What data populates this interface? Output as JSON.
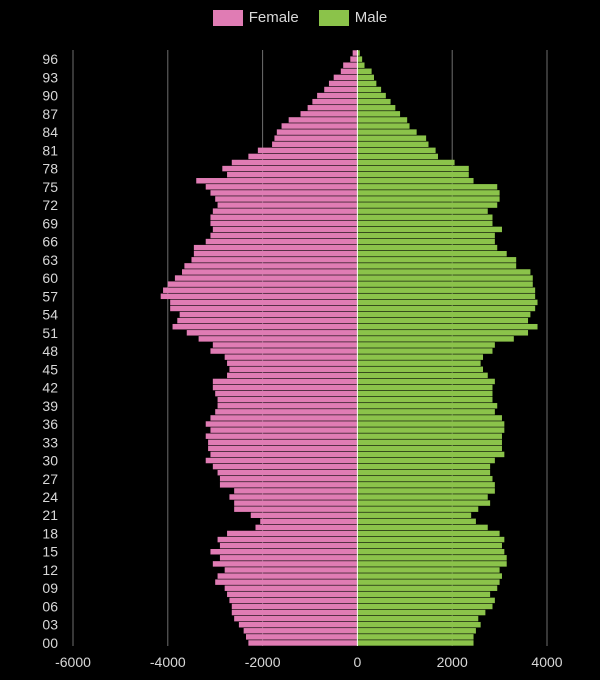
{
  "chart_data": {
    "type": "bar",
    "orientation": "horizontal",
    "layout": "population-pyramid",
    "legend_position": "top-center",
    "grid": "vertical",
    "xlim": [
      -6000,
      4000
    ],
    "x_ticks": [
      -6000,
      -4000,
      -2000,
      0,
      2000,
      4000
    ],
    "x_tick_labels": [
      "-6000",
      "-4000",
      "-2000",
      "0",
      "2000",
      "4000"
    ],
    "categories": [
      "0",
      "1",
      "2",
      "3",
      "4",
      "5",
      "6",
      "7",
      "8",
      "9",
      "10",
      "11",
      "12",
      "13",
      "14",
      "15",
      "16",
      "17",
      "18",
      "19",
      "20",
      "21",
      "22",
      "23",
      "24",
      "25",
      "26",
      "27",
      "28",
      "29",
      "30",
      "31",
      "32",
      "33",
      "34",
      "35",
      "36",
      "37",
      "38",
      "39",
      "40",
      "41",
      "42",
      "43",
      "44",
      "45",
      "46",
      "47",
      "48",
      "49",
      "50",
      "51",
      "52",
      "53",
      "54",
      "55",
      "56",
      "57",
      "58",
      "59",
      "60",
      "61",
      "62",
      "63",
      "64",
      "65",
      "66",
      "67",
      "68",
      "69",
      "70",
      "71",
      "72",
      "73",
      "74",
      "75",
      "76",
      "77",
      "78",
      "79",
      "80",
      "81",
      "82",
      "83",
      "84",
      "85",
      "86",
      "87",
      "88",
      "89",
      "90",
      "91",
      "92",
      "93",
      "94",
      "95",
      "96",
      "97"
    ],
    "y_tick_labels": [
      "00",
      "03",
      "06",
      "09",
      "12",
      "15",
      "18",
      "21",
      "24",
      "27",
      "30",
      "33",
      "36",
      "39",
      "42",
      "45",
      "48",
      "51",
      "54",
      "57",
      "60",
      "63",
      "66",
      "69",
      "72",
      "75",
      "78",
      "81",
      "84",
      "87",
      "90",
      "93",
      "96"
    ],
    "series": [
      {
        "name": "Female",
        "color": "#e07cb4",
        "values": [
          -2300,
          -2350,
          -2400,
          -2500,
          -2600,
          -2650,
          -2650,
          -2700,
          -2750,
          -2800,
          -3000,
          -2950,
          -2800,
          -3050,
          -2900,
          -3100,
          -2900,
          -2950,
          -2750,
          -2150,
          -2050,
          -2250,
          -2600,
          -2600,
          -2700,
          -2600,
          -2900,
          -2900,
          -2950,
          -3050,
          -3200,
          -3100,
          -3150,
          -3150,
          -3200,
          -3100,
          -3200,
          -3100,
          -3000,
          -2950,
          -2950,
          -3000,
          -3050,
          -3050,
          -2750,
          -2700,
          -2750,
          -2800,
          -3100,
          -3050,
          -3350,
          -3600,
          -3900,
          -3800,
          -3750,
          -3950,
          -3950,
          -4150,
          -4100,
          -4000,
          -3850,
          -3700,
          -3650,
          -3500,
          -3450,
          -3450,
          -3200,
          -3100,
          -3050,
          -3100,
          -3100,
          -3050,
          -2950,
          -3000,
          -3100,
          -3200,
          -3400,
          -2750,
          -2850,
          -2650,
          -2300,
          -2100,
          -1800,
          -1750,
          -1700,
          -1600,
          -1450,
          -1200,
          -1050,
          -950,
          -850,
          -700,
          -600,
          -500,
          -350,
          -300,
          -150,
          -100
        ]
      },
      {
        "name": "Male",
        "color": "#8bc34a",
        "values": [
          2450,
          2450,
          2500,
          2600,
          2550,
          2700,
          2850,
          2900,
          2800,
          2950,
          3000,
          3050,
          3000,
          3150,
          3150,
          3100,
          3050,
          3100,
          3000,
          2750,
          2500,
          2400,
          2550,
          2800,
          2750,
          2900,
          2900,
          2850,
          2800,
          2800,
          2900,
          3100,
          3050,
          3050,
          3050,
          3100,
          3100,
          3050,
          2900,
          2950,
          2850,
          2850,
          2850,
          2900,
          2750,
          2650,
          2600,
          2650,
          2850,
          2900,
          3300,
          3600,
          3800,
          3600,
          3650,
          3750,
          3800,
          3750,
          3750,
          3700,
          3700,
          3650,
          3350,
          3350,
          3150,
          2950,
          2900,
          2900,
          3050,
          2850,
          2850,
          2750,
          2950,
          3000,
          3000,
          2950,
          2450,
          2350,
          2350,
          2050,
          1700,
          1650,
          1500,
          1450,
          1250,
          1100,
          1050,
          900,
          800,
          700,
          600,
          500,
          400,
          350,
          300,
          150,
          100,
          50
        ]
      }
    ]
  }
}
